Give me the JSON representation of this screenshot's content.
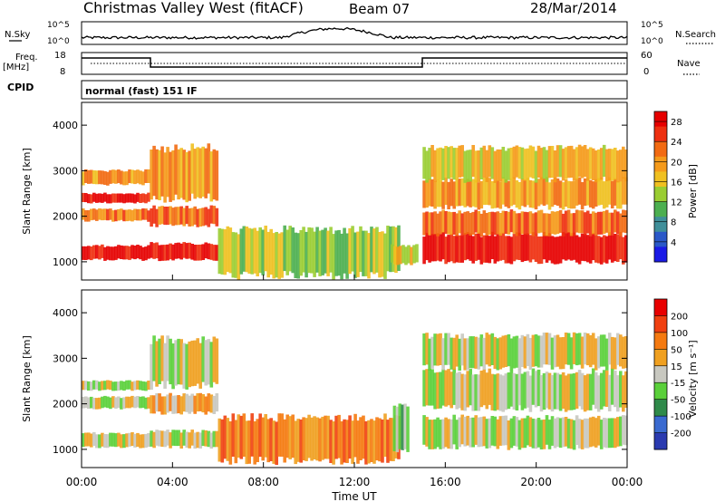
{
  "header": {
    "station": "Christmas Valley West (fitACF)",
    "beam": "Beam 07",
    "date": "28/Mar/2014"
  },
  "top_panel": {
    "nsky_label": "N.Sky",
    "nsearch_label": "N.Search",
    "noise_ticks": [
      "10^5",
      "10^0"
    ],
    "freq_label": "Freq.",
    "freq_unit": "[MHz]",
    "freq_ticks": [
      "18",
      "8"
    ],
    "nave_label": "Nave",
    "nave_ticks": [
      "60",
      "0"
    ],
    "cpid_label": "CPID",
    "cpid_value": "normal (fast) 151 IF"
  },
  "chart_data": [
    {
      "type": "heatmap",
      "name": "power",
      "ylabel": "Slant Range [km]",
      "ylim": [
        600,
        4500
      ],
      "yticks": [
        "1000",
        "2000",
        "3000",
        "4000"
      ],
      "xlim": [
        "00:00",
        "24:00"
      ],
      "colorbar": {
        "label": "Power [dB]",
        "ticks": [
          "4",
          "8",
          "12",
          "16",
          "20",
          "24",
          "28"
        ],
        "colors": [
          "#1a1ae6",
          "#2a58c8",
          "#3f8f9a",
          "#4caf50",
          "#9acd32",
          "#f0c020",
          "#f59a1a",
          "#f26a12",
          "#ee3010",
          "#e60000"
        ]
      },
      "echo_bands": [
        {
          "t": [
            0,
            3
          ],
          "range": [
            1050,
            1350
          ],
          "level": 9
        },
        {
          "t": [
            0,
            3
          ],
          "range": [
            1900,
            2150
          ],
          "level": 7
        },
        {
          "t": [
            0,
            3
          ],
          "range": [
            2300,
            2500
          ],
          "level": 9
        },
        {
          "t": [
            0,
            3
          ],
          "range": [
            2700,
            3000
          ],
          "level": 6
        },
        {
          "t": [
            3,
            6
          ],
          "range": [
            1050,
            1400
          ],
          "level": 9
        },
        {
          "t": [
            3,
            6
          ],
          "range": [
            1800,
            2200
          ],
          "level": 7
        },
        {
          "t": [
            3,
            6
          ],
          "range": [
            2400,
            3500
          ],
          "level": 6
        },
        {
          "t": [
            6,
            14
          ],
          "range": [
            700,
            1700
          ],
          "level": 4
        },
        {
          "t": [
            13.6,
            14.8
          ],
          "range": [
            950,
            1350
          ],
          "level": 5
        },
        {
          "t": [
            15,
            24
          ],
          "range": [
            1000,
            1600
          ],
          "level": 9
        },
        {
          "t": [
            15,
            24
          ],
          "range": [
            1600,
            2100
          ],
          "level": 7
        },
        {
          "t": [
            15,
            24
          ],
          "range": [
            2200,
            2800
          ],
          "level": 6
        },
        {
          "t": [
            15,
            24
          ],
          "range": [
            2800,
            3500
          ],
          "level": 5
        }
      ]
    },
    {
      "type": "heatmap",
      "name": "velocity",
      "ylabel": "Slant Range [km]",
      "ylim": [
        600,
        4500
      ],
      "yticks": [
        "1000",
        "2000",
        "3000",
        "4000"
      ],
      "xlabel": "Time UT",
      "xticks": [
        "00:00",
        "04:00",
        "08:00",
        "12:00",
        "16:00",
        "20:00",
        "00:00"
      ],
      "colorbar": {
        "label": "Velocity [m s⁻¹]",
        "ticks": [
          "200",
          "100",
          "50",
          "15",
          "-15",
          "-50",
          "-100",
          "-200"
        ],
        "colors": [
          "#2a3ab0",
          "#3a6ad0",
          "#2f8a4a",
          "#5ad03a",
          "#c8c8c0",
          "#f0a020",
          "#f57a10",
          "#f04010",
          "#e80000"
        ]
      },
      "echo_bands": [
        {
          "t": [
            0,
            3
          ],
          "range": [
            1050,
            1350
          ],
          "level": 4
        },
        {
          "t": [
            0,
            3
          ],
          "range": [
            1900,
            2150
          ],
          "level": 4
        },
        {
          "t": [
            0,
            3
          ],
          "range": [
            2300,
            2500
          ],
          "level": 4
        },
        {
          "t": [
            3,
            6
          ],
          "range": [
            1050,
            1400
          ],
          "level": 4
        },
        {
          "t": [
            3,
            6
          ],
          "range": [
            1800,
            2200
          ],
          "level": 5
        },
        {
          "t": [
            3,
            6
          ],
          "range": [
            2400,
            3400
          ],
          "level": 4
        },
        {
          "t": [
            6,
            14
          ],
          "range": [
            750,
            1700
          ],
          "level": 6
        },
        {
          "t": [
            13.7,
            14.4
          ],
          "range": [
            1000,
            2000
          ],
          "level": 3
        },
        {
          "t": [
            15,
            24
          ],
          "range": [
            1050,
            1700
          ],
          "level": 4
        },
        {
          "t": [
            15,
            24
          ],
          "range": [
            1900,
            2700
          ],
          "level": 4
        },
        {
          "t": [
            15,
            24
          ],
          "range": [
            2800,
            3500
          ],
          "level": 4
        }
      ]
    }
  ]
}
